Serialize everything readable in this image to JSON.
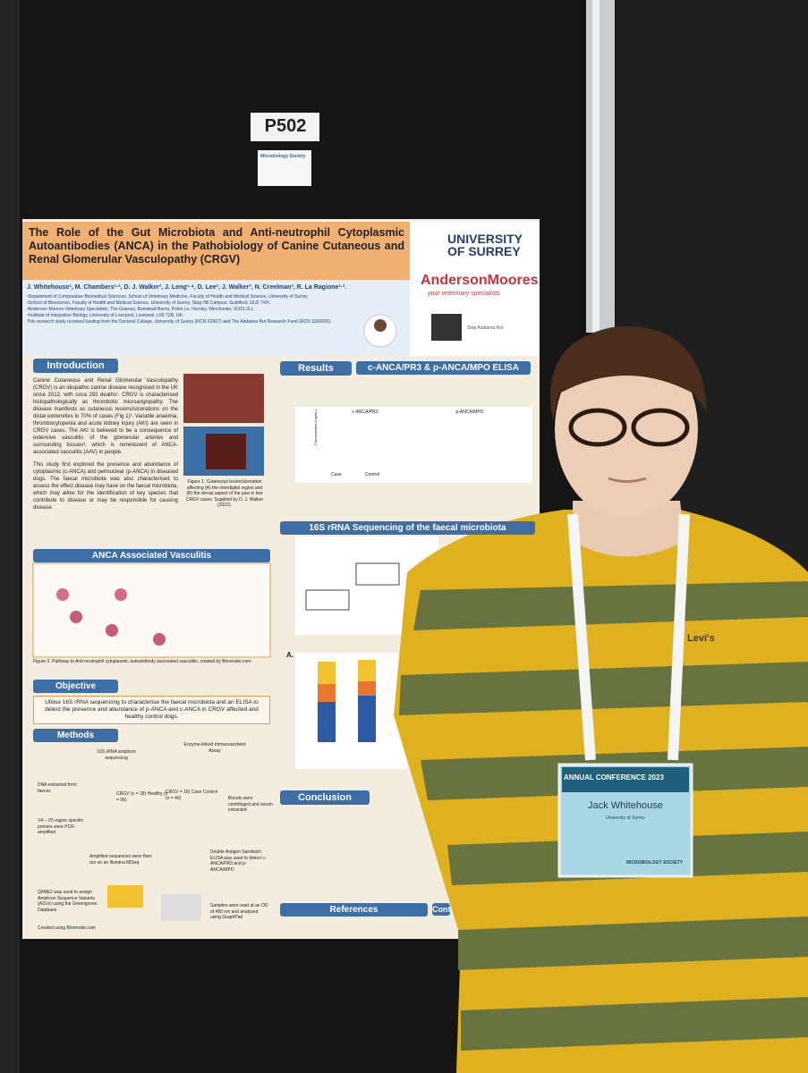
{
  "board_number": "P502",
  "award_card": "Microbiology Society",
  "poster": {
    "title": "The Role of the Gut Microbiota and Anti-neutrophil Cytoplasmic Autoantibodies (ANCA) in the Pathobiology of Canine Cutaneous and Renal Glomerular Vasculopathy (CRGV)",
    "authors": "J. Whitehouse¹, M. Chambers¹·², D. J. Walker³, J. Leng¹·⁴, D. Lee², J. Walker³, N. Creelman³, R. La Ragione¹·².",
    "affiliations": [
      "¹Department of Comparative Biomedical Sciences, School of Veterinary Medicine, Faculty of Health and Medical Science, University of Surrey",
      "²School of Bioscience, Faculty of Health and Medical Science, University of Surrey, Stag Hill Campus, Guildford, GU2 7XH.",
      "³Anderson Moores Veterinary Specialists, The Granary, Bunstead Barns, Poles Ln, Hursley, Winchester, SO21 2LL.",
      "⁴Institute of Integrative Biology, University of Liverpool, Liverpool, L69 7ZB, UK."
    ],
    "funding": "This research study received funding from the Doctoral College, University of Surrey (RCN X3967) and The Alabama Rot Research Fund (RCN 1166029).",
    "logos": {
      "university": "UNIVERSITY OF SURREY",
      "practice": "AndersonMoores",
      "practice_tagline": "your veterinary specialists",
      "fund": "Stop Alabama Rot"
    },
    "sections": {
      "introduction": {
        "heading": "Introduction",
        "text": "Canine Cutaneous and Renal Glomerular Vasculopathy (CRGV) is an idiopathic canine disease recognised in the UK since 2012, with circa 292 deaths¹. CRGV is characterised histopathologically as thrombotic microangiopathy. The disease manifests as cutaneous lesions/ulcerations on the distal extremities in 70% of cases (Fig 1)². Variable anaemia, thrombocytopenia and acute kidney injury (AKI) are seen in CRGV cases. The AKI is believed to be a consequence of extensive vasculitis of the glomerular arteries and surrounding tissues³, which is reminiscent of ANCA-associated vasculitis (AAV) in people.",
        "text2": "This study first explored the presence and abundance of cytoplasmic (c-ANCA) and perinuclear (p-ANCA) in diseased dogs. The faecal microbiota was also characterised to assess the effect disease may have on the faecal microbiota, which may allow for the identification of key species that contribute to disease or may be responsible for causing disease.",
        "figure_caption": "Figure 1. Cutaneous lesion/ulceration affecting (A) the interdigital region and (B) the dorsal aspect of the paw in two CRGV cases. Supplied by D. J. Walker (2022)."
      },
      "results": {
        "heading": "Results",
        "subheading": "c-ANCA/PR3 & p-ANCA/MPO ELISA",
        "panel1": "c-ANCA/PR3",
        "panel2": "p-ANCA/MPO",
        "axis_label": "Concentration (ng/mL)",
        "case": "Case",
        "control": "Control"
      },
      "vasculitis": {
        "heading": "ANCA Associated Vasculitis",
        "caption": "Figure 2. Pathway to Anti-neutrophil cytoplasmic autoantibody associated vasculitis, created by Biorender.com."
      },
      "objective": {
        "heading": "Objective",
        "text": "Utilise 16S rRNA sequencing to characterise the faecal microbiota and an ELISA to detect the presence and abundance of p-ANCA and c-ANCA in CRGV affected and healthy control dogs."
      },
      "methods": {
        "heading": "Methods",
        "steps": [
          "16S rRNA amplicon sequencing",
          "Enzyme-linked Immunosorbent Assay",
          "DNA extracted from faeces",
          "CRGV (n = 18) Healthy (n = 96)",
          "CRGV = 18) Case Control (n = 40)",
          "Bloods were centrifuged and serum extracted",
          "V4 – V5 region specific primers were PCR amplified",
          "Amplified sequences were then run on an Illumina MiSeq",
          "Double Antigen Sandwich ELISA was used to detect c-ANCA/PR3 and p-ANCA/MPO",
          "QIIME2 was used to assign Amplicon Sequence Variants (ASVs) using the Greengenes Database",
          "Samples were read at an OD of 450 nm and analysed using GraphPad"
        ],
        "credit": "Created using Biorender.com"
      },
      "sequencing": {
        "heading": "16S rRNA Sequencing of the faecal microbiota",
        "panel": "A."
      },
      "conclusion": {
        "heading": "Conclusion"
      },
      "references": {
        "heading": "References"
      },
      "contact": {
        "heading": "Conta"
      }
    }
  },
  "badge": {
    "event": "ANNUAL CONFERENCE",
    "year": "2023",
    "name": "Jack Whitehouse",
    "affiliation": "University of Surrey",
    "footer": "MICROBIOLOGY SOCIETY"
  },
  "shirt_logo": "Levi's"
}
